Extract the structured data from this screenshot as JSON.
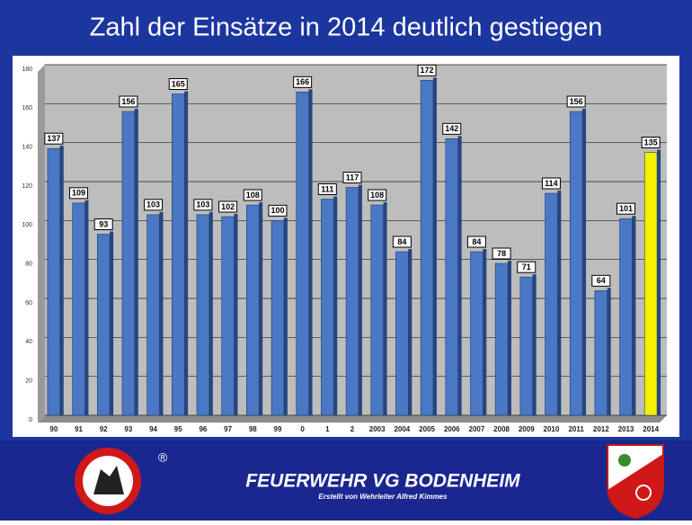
{
  "chart_data": {
    "type": "bar",
    "title": "Zahl der Einsätze in 2014 deutlich gestiegen",
    "categories": [
      "90",
      "91",
      "92",
      "93",
      "94",
      "95",
      "96",
      "97",
      "98",
      "99",
      "0",
      "1",
      "2",
      "2003",
      "2004",
      "2005",
      "2006",
      "2007",
      "2008",
      "2009",
      "2010",
      "2011",
      "2012",
      "2013",
      "2014"
    ],
    "values": [
      137,
      109,
      93,
      156,
      103,
      165,
      103,
      102,
      108,
      100,
      166,
      111,
      117,
      108,
      84,
      172,
      142,
      84,
      78,
      71,
      114,
      156,
      64,
      101,
      135
    ],
    "colors": [
      "#4a78c4",
      "#4a78c4",
      "#4a78c4",
      "#4a78c4",
      "#4a78c4",
      "#4a78c4",
      "#4a78c4",
      "#4a78c4",
      "#4a78c4",
      "#4a78c4",
      "#4a78c4",
      "#4a78c4",
      "#4a78c4",
      "#4a78c4",
      "#4a78c4",
      "#4a78c4",
      "#4a78c4",
      "#4a78c4",
      "#4a78c4",
      "#4a78c4",
      "#4a78c4",
      "#4a78c4",
      "#4a78c4",
      "#4a78c4",
      "#f5f000"
    ],
    "ylim": [
      0,
      180
    ],
    "yticks": [
      0,
      20,
      40,
      60,
      80,
      100,
      120,
      140,
      160,
      180
    ],
    "grid": true
  },
  "footer": {
    "title": "FEUERWEHR VG BODENHEIM",
    "subtitle": "Erstellt von Wehrleiter Alfred Kimmes",
    "mark": "®"
  }
}
